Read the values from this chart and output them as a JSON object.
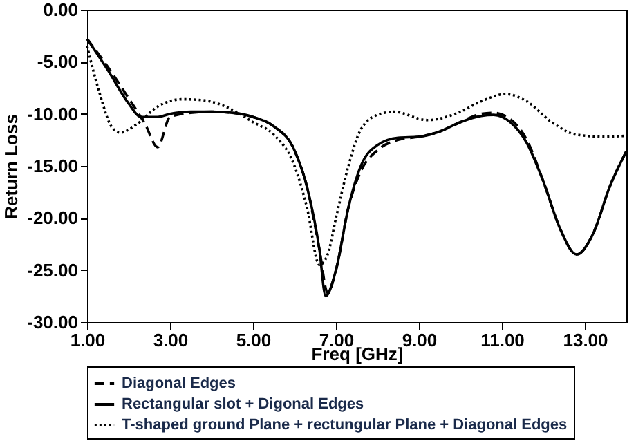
{
  "chart_data": {
    "type": "line",
    "xlabel": "Freq [GHz]",
    "ylabel": "Return Loss",
    "xlim": [
      1,
      14
    ],
    "ylim": [
      -30,
      0
    ],
    "xticks": [
      {
        "value": 1,
        "label": "1.00"
      },
      {
        "value": 3,
        "label": "3.00"
      },
      {
        "value": 5,
        "label": "5.00"
      },
      {
        "value": 7,
        "label": "7.00"
      },
      {
        "value": 9,
        "label": "9.00"
      },
      {
        "value": 11,
        "label": "11.00"
      },
      {
        "value": 13,
        "label": "13.00"
      }
    ],
    "yticks": [
      {
        "value": 0,
        "label": "0.00"
      },
      {
        "value": -5,
        "label": "-5.00"
      },
      {
        "value": -10,
        "label": "-10.00"
      },
      {
        "value": -15,
        "label": "-15.00"
      },
      {
        "value": -20,
        "label": "-20.00"
      },
      {
        "value": -25,
        "label": "-25.00"
      },
      {
        "value": -30,
        "label": "-30.00"
      }
    ],
    "grid": false,
    "legend": "bottom",
    "marker": "none",
    "series": [
      {
        "name": "Diagonal Edges",
        "color": "#000000",
        "line_style": "dashed",
        "x": [
          1,
          1.5,
          2,
          2.4,
          2.7,
          3.0,
          3.5,
          4,
          4.5,
          5,
          5.5,
          6,
          6.3,
          6.6,
          6.8,
          7,
          7.3,
          7.6,
          8,
          8.5,
          9,
          9.5,
          10,
          10.5,
          10.8,
          11.2,
          11.6,
          12,
          12.4,
          12.8,
          13.2,
          13.6,
          14
        ],
        "values": [
          -2.8,
          -5.5,
          -8.5,
          -11,
          -13.2,
          -10.3,
          -9.9,
          -9.8,
          -9.9,
          -10.3,
          -11.2,
          -13.5,
          -17,
          -23,
          -27.2,
          -25,
          -19,
          -15.5,
          -13.5,
          -12.5,
          -12.2,
          -11.7,
          -10.8,
          -10,
          -9.9,
          -10.5,
          -12.5,
          -16.5,
          -21,
          -23.5,
          -21.5,
          -17,
          -13.6
        ]
      },
      {
        "name": "Rectangular slot + Digonal Edges",
        "color": "#000000",
        "line_style": "solid",
        "x": [
          1,
          1.5,
          2,
          2.3,
          2.7,
          3,
          3.5,
          4,
          4.5,
          5,
          5.5,
          6,
          6.3,
          6.6,
          6.75,
          7,
          7.3,
          7.6,
          8,
          8.5,
          9,
          9.5,
          10,
          10.5,
          10.8,
          11.2,
          11.6,
          12,
          12.4,
          12.8,
          13.2,
          13.6,
          14
        ],
        "values": [
          -2.8,
          -5.8,
          -9,
          -10.3,
          -10.3,
          -10,
          -9.8,
          -9.8,
          -9.9,
          -10.3,
          -11.2,
          -13.5,
          -17,
          -23,
          -27.5,
          -25,
          -19,
          -15,
          -13,
          -12.3,
          -12.2,
          -11.7,
          -10.8,
          -10.2,
          -10.1,
          -10.8,
          -12.8,
          -16.5,
          -21,
          -23.5,
          -21.5,
          -17,
          -13.6
        ]
      },
      {
        "name": "T-shaped ground Plane + rectungular Plane + Diagonal Edges",
        "color": "#000000",
        "line_style": "dotted",
        "x": [
          1,
          1.3,
          1.6,
          1.8,
          2.2,
          2.7,
          3.3,
          3.8,
          4.5,
          5,
          5.5,
          6,
          6.3,
          6.6,
          6.8,
          7,
          7.3,
          7.6,
          8,
          8.4,
          9.2,
          10,
          10.5,
          11.1,
          11.6,
          12.2,
          12.8,
          13.5,
          14
        ],
        "values": [
          -3.5,
          -8,
          -11.3,
          -11.8,
          -11,
          -9.3,
          -8.6,
          -8.7,
          -9.6,
          -10.8,
          -12,
          -15,
          -19,
          -24.5,
          -23.5,
          -20,
          -15,
          -11.5,
          -10.1,
          -9.8,
          -10.6,
          -9.8,
          -8.8,
          -8.1,
          -8.8,
          -10.8,
          -12,
          -12.2,
          -12.1
        ]
      }
    ]
  }
}
